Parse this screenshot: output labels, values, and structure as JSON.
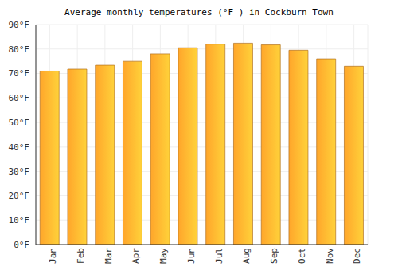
{
  "chart_data": {
    "type": "bar",
    "title": "Average monthly temperatures (°F ) in Cockburn Town",
    "categories": [
      "Jan",
      "Feb",
      "Mar",
      "Apr",
      "May",
      "Jun",
      "Jul",
      "Aug",
      "Sep",
      "Oct",
      "Nov",
      "Dec"
    ],
    "values": [
      71,
      71.8,
      73.4,
      75,
      78,
      80.5,
      82,
      82.4,
      81.7,
      79.5,
      76,
      73
    ],
    "color": "#ffa62b",
    "ylim": [
      0,
      90
    ],
    "yticks": [
      {
        "value": 0,
        "label": "0°F"
      },
      {
        "value": 10,
        "label": "10°F"
      },
      {
        "value": 20,
        "label": "20°F"
      },
      {
        "value": 30,
        "label": "30°F"
      },
      {
        "value": 40,
        "label": "40°F"
      },
      {
        "value": 50,
        "label": "50°F"
      },
      {
        "value": 60,
        "label": "60°F"
      },
      {
        "value": 70,
        "label": "70°F"
      },
      {
        "value": 80,
        "label": "80°F"
      },
      {
        "value": 90,
        "label": "90°F"
      }
    ],
    "grid": true
  }
}
